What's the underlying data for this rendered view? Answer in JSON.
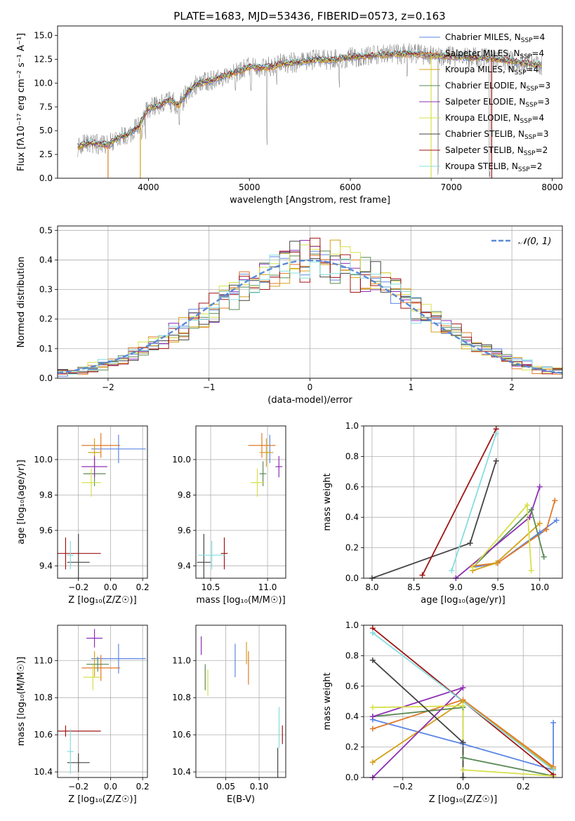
{
  "figure": {
    "title": "PLATE=1683, MJD=53436, FIBERID=0573, z=0.163"
  },
  "colors": {
    "Chabrier MILES": "#5b86e5",
    "Salpeter MILES": "#e07a2a",
    "Kroupa MILES": "#d4a017",
    "Chabrier ELODIE": "#5a8a55",
    "Salpeter ELODIE": "#8e2fb5",
    "Kroupa ELODIE": "#d6e04a",
    "Chabrier STELIB": "#444444",
    "Salpeter STELIB": "#a01515",
    "Kroupa STELIB": "#86dde0",
    "data": "#808080",
    "normal": "#5b8ad6",
    "grid": "#b0b0b0"
  },
  "chart_data": [
    {
      "id": "spectrum",
      "type": "line",
      "xlabel": "wavelength [Angstrom, rest frame]",
      "ylabel": "Flux [fλ10⁻¹⁷ erg cm⁻² s⁻¹ A⁻¹]",
      "xlim": [
        3100,
        8100
      ],
      "ylim": [
        0,
        16
      ],
      "xticks": [
        4000,
        5000,
        6000,
        7000,
        8000
      ],
      "yticks": [
        0.0,
        2.5,
        5.0,
        7.5,
        10.0,
        12.5,
        15.0
      ],
      "grid": false,
      "legend_position": "top-right",
      "legend": [
        "Chabrier MILES, N_SSP=4",
        "Salpeter MILES, N_SSP=4",
        "Kroupa MILES, N_SSP=4",
        "Chabrier ELODIE, N_SSP=3",
        "Salpeter ELODIE, N_SSP=3",
        "Kroupa ELODIE, N_SSP=4",
        "Chabrier STELIB, N_SSP=3",
        "Salpeter STELIB, N_SSP=2",
        "Kroupa STELIB, N_SSP=2"
      ],
      "continuum": [
        [
          3300,
          3.3
        ],
        [
          3400,
          3.7
        ],
        [
          3500,
          3.6
        ],
        [
          3600,
          3.5
        ],
        [
          3700,
          4.3
        ],
        [
          3800,
          4.6
        ],
        [
          3900,
          5.4
        ],
        [
          4000,
          7.4
        ],
        [
          4100,
          7.6
        ],
        [
          4200,
          8.2
        ],
        [
          4300,
          7.7
        ],
        [
          4400,
          9.2
        ],
        [
          4500,
          10.0
        ],
        [
          4600,
          10.2
        ],
        [
          4700,
          10.6
        ],
        [
          4800,
          10.9
        ],
        [
          4900,
          11.3
        ],
        [
          5000,
          11.7
        ],
        [
          5100,
          11.6
        ],
        [
          5200,
          11.7
        ],
        [
          5300,
          12.0
        ],
        [
          5400,
          12.1
        ],
        [
          5500,
          12.2
        ],
        [
          5600,
          12.4
        ],
        [
          5700,
          12.5
        ],
        [
          5800,
          12.4
        ],
        [
          5900,
          12.6
        ],
        [
          6000,
          12.7
        ],
        [
          6200,
          12.9
        ],
        [
          6400,
          13.0
        ],
        [
          6600,
          13.1
        ],
        [
          6800,
          12.9
        ],
        [
          7000,
          12.8
        ],
        [
          7200,
          12.7
        ],
        [
          7400,
          12.6
        ],
        [
          7600,
          12.3
        ],
        [
          7800,
          12.0
        ],
        [
          7900,
          11.9
        ]
      ],
      "absorption_lines": [
        [
          3934,
          3.5
        ],
        [
          3969,
          4.0
        ],
        [
          4102,
          6.0
        ],
        [
          4226,
          6.5
        ],
        [
          4305,
          5.5
        ],
        [
          4341,
          7.0
        ],
        [
          4861,
          8.5
        ],
        [
          5016,
          9.0
        ],
        [
          5175,
          3.2
        ],
        [
          5270,
          9.5
        ],
        [
          5890,
          9.5
        ],
        [
          6563,
          10.5
        ],
        [
          6870,
          0.0
        ],
        [
          7380,
          0.0
        ]
      ]
    },
    {
      "id": "residuals",
      "type": "histogram",
      "xlabel": "(data-model)/error",
      "ylabel": "Normed distribution",
      "xlim": [
        -2.5,
        2.5
      ],
      "ylim": [
        0,
        0.515
      ],
      "xticks": [
        -2,
        -1,
        0,
        1,
        2
      ],
      "yticks": [
        0.0,
        0.1,
        0.2,
        0.3,
        0.4,
        0.5
      ],
      "grid": true,
      "legend_position": "top-right",
      "legend": [
        "𝒩(0, 1)"
      ],
      "bin_width": 0.1,
      "bin_start": -2.5
    },
    {
      "id": "age-vs-Z",
      "type": "scatter",
      "xlabel": "Z [log₁₀(Z/Z☉)]",
      "ylabel": "age  [log₁₀(age/yr)]",
      "xlim": [
        -0.33,
        0.23
      ],
      "ylim": [
        9.33,
        10.19
      ],
      "xticks": [
        -0.2,
        0.0,
        0.2
      ],
      "yticks": [
        9.4,
        9.6,
        9.8,
        10.0
      ],
      "grid": true,
      "points": [
        {
          "model": "Chabrier MILES",
          "x": 0.05,
          "y": 10.06,
          "xerr": 0.17,
          "yerr": 0.08
        },
        {
          "model": "Salpeter MILES",
          "x": -0.06,
          "y": 10.08,
          "xerr": 0.12,
          "yerr": 0.07
        },
        {
          "model": "Kroupa MILES",
          "x": -0.1,
          "y": 10.04,
          "xerr": 0.04,
          "yerr": 0.08
        },
        {
          "model": "Chabrier ELODIE",
          "x": -0.1,
          "y": 9.92,
          "xerr": 0.07,
          "yerr": 0.07
        },
        {
          "model": "Salpeter ELODIE",
          "x": -0.1,
          "y": 9.96,
          "xerr": 0.08,
          "yerr": 0.06
        },
        {
          "model": "Kroupa ELODIE",
          "x": -0.12,
          "y": 9.87,
          "xerr": 0.06,
          "yerr": 0.08
        },
        {
          "model": "Chabrier STELIB",
          "x": -0.2,
          "y": 9.42,
          "xerr": 0.07,
          "yerr": 0.16
        },
        {
          "model": "Salpeter STELIB",
          "x": -0.28,
          "y": 9.47,
          "xerr": 0.22,
          "yerr": 0.09
        },
        {
          "model": "Kroupa STELIB",
          "x": -0.25,
          "y": 9.46,
          "xerr": 0.02,
          "yerr": 0.08
        }
      ]
    },
    {
      "id": "age-vs-mass",
      "type": "scatter",
      "xlabel": "mass [log₁₀(M/M☉)]",
      "ylabel": "",
      "xlim": [
        10.37,
        11.16
      ],
      "ylim": [
        9.33,
        10.19
      ],
      "xticks": [
        10.5,
        11.0
      ],
      "yticks": [
        9.4,
        9.6,
        9.8,
        10.0
      ],
      "grid": true,
      "points": [
        {
          "model": "Chabrier MILES",
          "x": 11.02,
          "y": 10.06,
          "xerr": 0.0,
          "yerr": 0.08
        },
        {
          "model": "Salpeter MILES",
          "x": 10.95,
          "y": 10.08,
          "xerr": 0.12,
          "yerr": 0.07
        },
        {
          "model": "Kroupa MILES",
          "x": 10.99,
          "y": 10.04,
          "xerr": 0.06,
          "yerr": 0.08
        },
        {
          "model": "Chabrier ELODIE",
          "x": 10.96,
          "y": 9.92,
          "xerr": 0.03,
          "yerr": 0.07
        },
        {
          "model": "Salpeter ELODIE",
          "x": 11.1,
          "y": 9.96,
          "xerr": 0.03,
          "yerr": 0.06
        },
        {
          "model": "Kroupa ELODIE",
          "x": 10.91,
          "y": 9.87,
          "xerr": 0.06,
          "yerr": 0.08
        },
        {
          "model": "Chabrier STELIB",
          "x": 10.44,
          "y": 9.42,
          "xerr": 0.06,
          "yerr": 0.16
        },
        {
          "model": "Salpeter STELIB",
          "x": 10.62,
          "y": 9.47,
          "xerr": 0.03,
          "yerr": 0.09
        },
        {
          "model": "Kroupa STELIB",
          "x": 10.51,
          "y": 9.46,
          "xerr": 0.12,
          "yerr": 0.08
        }
      ]
    },
    {
      "id": "massweight-vs-age",
      "type": "line",
      "xlabel": "age  [log₁₀(age/yr)]",
      "ylabel": "mass weight",
      "xlim": [
        7.9,
        10.27
      ],
      "ylim": [
        0,
        1
      ],
      "xticks": [
        8.0,
        8.5,
        9.0,
        9.5,
        10.0
      ],
      "yticks": [
        0.0,
        0.2,
        0.4,
        0.6,
        0.8,
        1.0
      ],
      "grid": true,
      "series": [
        {
          "model": "Chabrier MILES",
          "x": [
            9.2,
            9.5,
            10.0,
            10.2
          ],
          "y": [
            0.07,
            0.1,
            0.3,
            0.38
          ]
        },
        {
          "model": "Salpeter MILES",
          "x": [
            9.2,
            9.5,
            10.08,
            10.18
          ],
          "y": [
            0.08,
            0.1,
            0.32,
            0.51
          ]
        },
        {
          "model": "Kroupa MILES",
          "x": [
            9.2,
            9.48,
            10.0
          ],
          "y": [
            0.05,
            0.1,
            0.36
          ]
        },
        {
          "model": "Chabrier ELODIE",
          "x": [
            9.2,
            9.9,
            10.05
          ],
          "y": [
            0.07,
            0.45,
            0.14
          ]
        },
        {
          "model": "Salpeter ELODIE",
          "x": [
            9.0,
            9.88,
            10.0
          ],
          "y": [
            0.0,
            0.4,
            0.6
          ]
        },
        {
          "model": "Kroupa ELODIE",
          "x": [
            9.2,
            9.85,
            9.9
          ],
          "y": [
            0.07,
            0.48,
            0.05
          ]
        },
        {
          "model": "Chabrier STELIB",
          "x": [
            8.0,
            9.17,
            9.48
          ],
          "y": [
            0.0,
            0.23,
            0.77
          ]
        },
        {
          "model": "Salpeter STELIB",
          "x": [
            8.6,
            9.48
          ],
          "y": [
            0.02,
            0.98
          ]
        },
        {
          "model": "Kroupa STELIB",
          "x": [
            8.95,
            9.48
          ],
          "y": [
            0.05,
            0.95
          ]
        }
      ]
    },
    {
      "id": "mass-vs-Z",
      "type": "scatter",
      "xlabel": "Z [log₁₀(Z/Z☉)]",
      "ylabel": "mass [log₁₀(M/M☉)]",
      "xlim": [
        -0.33,
        0.23
      ],
      "ylim": [
        10.37,
        11.19
      ],
      "xticks": [
        -0.2,
        0.0,
        0.2
      ],
      "yticks": [
        10.4,
        10.6,
        10.8,
        11.0
      ],
      "grid": true,
      "points": [
        {
          "model": "Chabrier MILES",
          "x": 0.05,
          "y": 11.01,
          "xerr": 0.17,
          "yerr": 0.08
        },
        {
          "model": "Salpeter MILES",
          "x": -0.06,
          "y": 10.96,
          "xerr": 0.12,
          "yerr": 0.07
        },
        {
          "model": "Kroupa MILES",
          "x": -0.1,
          "y": 10.98,
          "xerr": 0.04,
          "yerr": 0.07
        },
        {
          "model": "Chabrier ELODIE",
          "x": -0.08,
          "y": 10.98,
          "xerr": 0.07,
          "yerr": 0.04
        },
        {
          "model": "Salpeter ELODIE",
          "x": -0.1,
          "y": 11.12,
          "xerr": 0.05,
          "yerr": 0.05
        },
        {
          "model": "Kroupa ELODIE",
          "x": -0.11,
          "y": 10.91,
          "xerr": 0.06,
          "yerr": 0.07
        },
        {
          "model": "Chabrier STELIB",
          "x": -0.2,
          "y": 10.45,
          "xerr": 0.07,
          "yerr": 0.05
        },
        {
          "model": "Salpeter STELIB",
          "x": -0.28,
          "y": 10.62,
          "xerr": 0.22,
          "yerr": 0.03
        },
        {
          "model": "Kroupa STELIB",
          "x": -0.25,
          "y": 10.51,
          "xerr": 0.02,
          "yerr": 0.12
        }
      ]
    },
    {
      "id": "mass-vs-EBV",
      "type": "scatter",
      "xlabel": "E(B-V)",
      "ylabel": "",
      "xlim": [
        0.005,
        0.14
      ],
      "ylim": [
        10.37,
        11.19
      ],
      "xticks": [
        0.05,
        0.1
      ],
      "xticklabels": [
        "0.05",
        "0.10"
      ],
      "yticks": [
        10.4,
        10.6,
        10.8,
        11.0
      ],
      "grid": true,
      "points": [
        {
          "model": "Salpeter ELODIE",
          "x": 0.013,
          "y": 11.08,
          "xerr": 0,
          "yerr": 0.05
        },
        {
          "model": "Chabrier ELODIE",
          "x": 0.019,
          "y": 10.91,
          "xerr": 0,
          "yerr": 0.07
        },
        {
          "model": "Kroupa ELODIE",
          "x": 0.023,
          "y": 10.88,
          "xerr": 0,
          "yerr": 0.07
        },
        {
          "model": "Chabrier MILES",
          "x": 0.064,
          "y": 11.0,
          "xerr": 0,
          "yerr": 0.09
        },
        {
          "model": "Kroupa MILES",
          "x": 0.081,
          "y": 11.04,
          "xerr": 0,
          "yerr": 0.06
        },
        {
          "model": "Salpeter MILES",
          "x": 0.084,
          "y": 10.96,
          "xerr": 0,
          "yerr": 0.09
        },
        {
          "model": "Kroupa STELIB",
          "x": 0.13,
          "y": 10.64,
          "xerr": 0,
          "yerr": 0.11
        },
        {
          "model": "Chabrier STELIB",
          "x": 0.128,
          "y": 10.45,
          "xerr": 0,
          "yerr": 0.08
        },
        {
          "model": "Salpeter STELIB",
          "x": 0.135,
          "y": 10.6,
          "xerr": 0,
          "yerr": 0.05
        }
      ]
    },
    {
      "id": "massweight-vs-Z",
      "type": "line",
      "xlabel": "Z [log₁₀(Z/Z☉)]",
      "ylabel": "mass weight",
      "xlim": [
        -0.33,
        0.33
      ],
      "ylim": [
        0,
        1
      ],
      "xticks": [
        -0.2,
        0.0,
        0.2
      ],
      "yticks": [
        0.0,
        0.2,
        0.4,
        0.6,
        0.8,
        1.0
      ],
      "grid": true,
      "series": [
        {
          "model": "Chabrier MILES",
          "x": [
            -0.3,
            0.0,
            0.3,
            0.3
          ],
          "y": [
            0.38,
            0.22,
            0.05,
            0.36
          ]
        },
        {
          "model": "Salpeter MILES",
          "x": [
            -0.3,
            0.0,
            0.3
          ],
          "y": [
            0.32,
            0.51,
            0.07
          ]
        },
        {
          "model": "Kroupa MILES",
          "x": [
            -0.3,
            0.0,
            0.3
          ],
          "y": [
            0.1,
            0.5,
            0.06
          ]
        },
        {
          "model": "Chabrier ELODIE",
          "x": [
            -0.3,
            0.0,
            0.0,
            0.3
          ],
          "y": [
            0.4,
            0.46,
            0.13,
            0.01
          ]
        },
        {
          "model": "Salpeter ELODIE",
          "x": [
            -0.3,
            0.0,
            -0.3
          ],
          "y": [
            0.0,
            0.59,
            0.4
          ]
        },
        {
          "model": "Kroupa ELODIE",
          "x": [
            -0.3,
            0.0,
            0.0,
            0.3
          ],
          "y": [
            0.46,
            0.47,
            0.05,
            0.01
          ]
        },
        {
          "model": "Chabrier STELIB",
          "x": [
            -0.3,
            0.0,
            0.0
          ],
          "y": [
            0.77,
            0.23,
            0.0
          ]
        },
        {
          "model": "Salpeter STELIB",
          "x": [
            -0.3,
            0.3
          ],
          "y": [
            0.98,
            0.02
          ]
        },
        {
          "model": "Kroupa STELIB",
          "x": [
            -0.3,
            0.3
          ],
          "y": [
            0.95,
            0.05
          ]
        }
      ]
    }
  ]
}
